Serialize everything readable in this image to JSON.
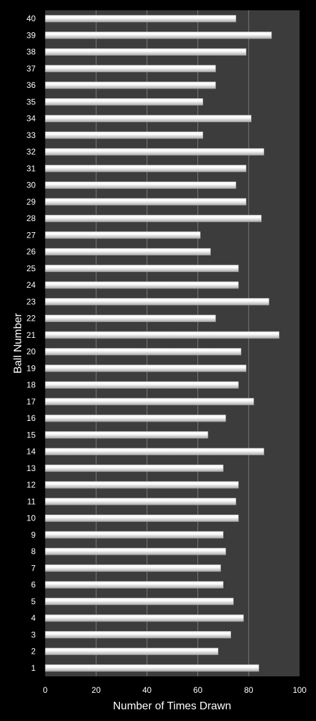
{
  "chart_data": {
    "type": "bar",
    "orientation": "horizontal",
    "xlabel": "Number of Times Drawn",
    "ylabel": "Ball Number",
    "xlim": [
      0,
      100
    ],
    "xticks": [
      "0",
      "20",
      "40",
      "60",
      "80",
      "100"
    ],
    "grid": "vertical major gridlines",
    "legend": "none",
    "colors": {
      "background": "#000000",
      "plot_area": "#3c3c3c",
      "bar_fill": "#d9d9d9",
      "bar_highlight": "#ffffff",
      "gridline": "#7a7a7a",
      "text": "#ffffff"
    },
    "categories": [
      "1",
      "2",
      "3",
      "4",
      "5",
      "6",
      "7",
      "8",
      "9",
      "10",
      "11",
      "12",
      "13",
      "14",
      "15",
      "16",
      "17",
      "18",
      "19",
      "20",
      "21",
      "22",
      "23",
      "24",
      "25",
      "26",
      "27",
      "28",
      "29",
      "30",
      "31",
      "32",
      "33",
      "34",
      "35",
      "36",
      "37",
      "38",
      "39",
      "40"
    ],
    "values": [
      84,
      68,
      73,
      78,
      74,
      70,
      69,
      71,
      70,
      76,
      75,
      76,
      70,
      86,
      64,
      71,
      82,
      76,
      79,
      77,
      92,
      67,
      88,
      76,
      76,
      65,
      61,
      85,
      79,
      75,
      79,
      86,
      62,
      81,
      62,
      67,
      67,
      79,
      89,
      75
    ]
  }
}
